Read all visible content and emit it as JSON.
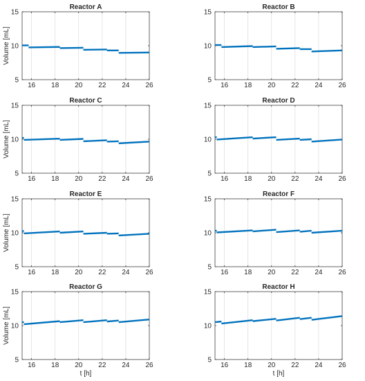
{
  "chart_data": [
    {
      "type": "line",
      "title": "Reactor A",
      "xlabel": "",
      "ylabel": "Volume [mL]",
      "xlim": [
        15.2,
        26
      ],
      "ylim": [
        5,
        15
      ],
      "xticks": [
        "16",
        "18",
        "20",
        "22",
        "24",
        "26"
      ],
      "yticks": [
        "5",
        "10",
        "15"
      ],
      "grid": "x",
      "series": [
        {
          "color": "#0072BD",
          "segments": [
            [
              [
                15.2,
                10.05
              ],
              [
                15.75,
                10.05
              ]
            ],
            [
              [
                15.75,
                9.75
              ],
              [
                18.4,
                9.82
              ]
            ],
            [
              [
                18.4,
                9.65
              ],
              [
                20.4,
                9.7
              ]
            ],
            [
              [
                20.4,
                9.4
              ],
              [
                22.4,
                9.45
              ]
            ],
            [
              [
                22.4,
                9.3
              ],
              [
                23.4,
                9.3
              ]
            ],
            [
              [
                23.4,
                8.95
              ],
              [
                26,
                9.0
              ]
            ]
          ]
        }
      ]
    },
    {
      "type": "line",
      "title": "Reactor B",
      "xlabel": "",
      "ylabel": "",
      "xlim": [
        15.2,
        26
      ],
      "ylim": [
        5,
        15
      ],
      "xticks": [
        "16",
        "18",
        "20",
        "22",
        "24",
        "26"
      ],
      "yticks": [
        "5",
        "10",
        "15"
      ],
      "grid": "x",
      "series": [
        {
          "color": "#0072BD",
          "segments": [
            [
              [
                15.2,
                10.1
              ],
              [
                15.75,
                10.1
              ]
            ],
            [
              [
                15.75,
                9.8
              ],
              [
                18.4,
                9.95
              ]
            ],
            [
              [
                18.4,
                9.8
              ],
              [
                20.4,
                9.9
              ]
            ],
            [
              [
                20.4,
                9.55
              ],
              [
                22.4,
                9.65
              ]
            ],
            [
              [
                22.4,
                9.5
              ],
              [
                23.4,
                9.5
              ]
            ],
            [
              [
                23.4,
                9.15
              ],
              [
                26,
                9.3
              ]
            ]
          ]
        }
      ]
    },
    {
      "type": "line",
      "title": "Reactor C",
      "xlabel": "",
      "ylabel": "Volume [mL]",
      "xlim": [
        15.2,
        26
      ],
      "ylim": [
        5,
        15
      ],
      "xticks": [
        "16",
        "18",
        "20",
        "22",
        "24",
        "26"
      ],
      "yticks": [
        "5",
        "10",
        "15"
      ],
      "grid": "x",
      "series": [
        {
          "color": "#0072BD",
          "segments": [
            [
              [
                15.2,
                10.2
              ],
              [
                15.35,
                10.2
              ]
            ],
            [
              [
                15.35,
                9.9
              ],
              [
                18.4,
                10.08
              ]
            ],
            [
              [
                18.4,
                9.9
              ],
              [
                20.4,
                10.05
              ]
            ],
            [
              [
                20.4,
                9.7
              ],
              [
                22.4,
                9.85
              ]
            ],
            [
              [
                22.4,
                9.65
              ],
              [
                23.4,
                9.7
              ]
            ],
            [
              [
                23.4,
                9.4
              ],
              [
                26,
                9.65
              ]
            ]
          ]
        }
      ]
    },
    {
      "type": "line",
      "title": "Reactor D",
      "xlabel": "",
      "ylabel": "",
      "xlim": [
        15.2,
        26
      ],
      "ylim": [
        5,
        15
      ],
      "xticks": [
        "16",
        "18",
        "20",
        "22",
        "24",
        "26"
      ],
      "yticks": [
        "5",
        "10",
        "15"
      ],
      "grid": "x",
      "series": [
        {
          "color": "#0072BD",
          "segments": [
            [
              [
                15.2,
                10.3
              ],
              [
                15.35,
                10.3
              ]
            ],
            [
              [
                15.35,
                9.95
              ],
              [
                18.4,
                10.3
              ]
            ],
            [
              [
                18.4,
                10.1
              ],
              [
                20.4,
                10.3
              ]
            ],
            [
              [
                20.4,
                9.9
              ],
              [
                22.4,
                10.1
              ]
            ],
            [
              [
                22.4,
                9.9
              ],
              [
                23.4,
                10.0
              ]
            ],
            [
              [
                23.4,
                9.65
              ],
              [
                26,
                9.95
              ]
            ]
          ]
        }
      ]
    },
    {
      "type": "line",
      "title": "Reactor E",
      "xlabel": "",
      "ylabel": "Volume [mL]",
      "xlim": [
        15.2,
        26
      ],
      "ylim": [
        5,
        15
      ],
      "xticks": [
        "16",
        "18",
        "20",
        "22",
        "24",
        "26"
      ],
      "yticks": [
        "5",
        "10",
        "15"
      ],
      "grid": "x",
      "series": [
        {
          "color": "#0072BD",
          "segments": [
            [
              [
                15.2,
                10.25
              ],
              [
                15.35,
                10.25
              ]
            ],
            [
              [
                15.35,
                9.9
              ],
              [
                18.4,
                10.2
              ]
            ],
            [
              [
                18.4,
                10.0
              ],
              [
                20.4,
                10.2
              ]
            ],
            [
              [
                20.4,
                9.85
              ],
              [
                22.4,
                10.0
              ]
            ],
            [
              [
                22.4,
                9.85
              ],
              [
                23.4,
                9.9
              ]
            ],
            [
              [
                23.4,
                9.6
              ],
              [
                26,
                9.85
              ]
            ]
          ]
        }
      ]
    },
    {
      "type": "line",
      "title": "Reactor F",
      "xlabel": "",
      "ylabel": "",
      "xlim": [
        15.2,
        26
      ],
      "ylim": [
        5,
        15
      ],
      "xticks": [
        "16",
        "18",
        "20",
        "22",
        "24",
        "26"
      ],
      "yticks": [
        "5",
        "10",
        "15"
      ],
      "grid": "x",
      "series": [
        {
          "color": "#0072BD",
          "segments": [
            [
              [
                15.2,
                10.3
              ],
              [
                15.35,
                10.3
              ]
            ],
            [
              [
                15.35,
                10.05
              ],
              [
                18.4,
                10.35
              ]
            ],
            [
              [
                18.4,
                10.2
              ],
              [
                20.4,
                10.45
              ]
            ],
            [
              [
                20.4,
                10.1
              ],
              [
                22.4,
                10.35
              ]
            ],
            [
              [
                22.4,
                10.15
              ],
              [
                23.4,
                10.3
              ]
            ],
            [
              [
                23.4,
                10.0
              ],
              [
                26,
                10.3
              ]
            ]
          ]
        }
      ]
    },
    {
      "type": "line",
      "title": "Reactor G",
      "xlabel": "t [h]",
      "ylabel": "Volume [mL]",
      "xlim": [
        15.2,
        26
      ],
      "ylim": [
        5,
        15
      ],
      "xticks": [
        "16",
        "18",
        "20",
        "22",
        "24",
        "26"
      ],
      "yticks": [
        "5",
        "10",
        "15"
      ],
      "grid": "x",
      "series": [
        {
          "color": "#0072BD",
          "segments": [
            [
              [
                15.2,
                10.5
              ],
              [
                15.35,
                10.5
              ]
            ],
            [
              [
                15.35,
                10.2
              ],
              [
                18.4,
                10.65
              ]
            ],
            [
              [
                18.4,
                10.5
              ],
              [
                20.4,
                10.8
              ]
            ],
            [
              [
                20.4,
                10.5
              ],
              [
                22.4,
                10.8
              ]
            ],
            [
              [
                22.4,
                10.6
              ],
              [
                23.4,
                10.75
              ]
            ],
            [
              [
                23.4,
                10.5
              ],
              [
                26,
                10.9
              ]
            ]
          ]
        }
      ]
    },
    {
      "type": "line",
      "title": "Reactor H",
      "xlabel": "t [h]",
      "ylabel": "",
      "xlim": [
        15.2,
        26
      ],
      "ylim": [
        5,
        15
      ],
      "xticks": [
        "16",
        "18",
        "20",
        "22",
        "24",
        "26"
      ],
      "yticks": [
        "5",
        "10",
        "15"
      ],
      "grid": "x",
      "series": [
        {
          "color": "#0072BD",
          "segments": [
            [
              [
                15.2,
                10.5
              ],
              [
                15.75,
                10.6
              ]
            ],
            [
              [
                15.75,
                10.3
              ],
              [
                18.4,
                10.8
              ]
            ],
            [
              [
                18.4,
                10.65
              ],
              [
                20.4,
                11.0
              ]
            ],
            [
              [
                20.4,
                10.75
              ],
              [
                22.4,
                11.15
              ]
            ],
            [
              [
                22.4,
                10.95
              ],
              [
                23.4,
                11.15
              ]
            ],
            [
              [
                23.4,
                10.85
              ],
              [
                26,
                11.4
              ]
            ]
          ]
        }
      ]
    }
  ]
}
